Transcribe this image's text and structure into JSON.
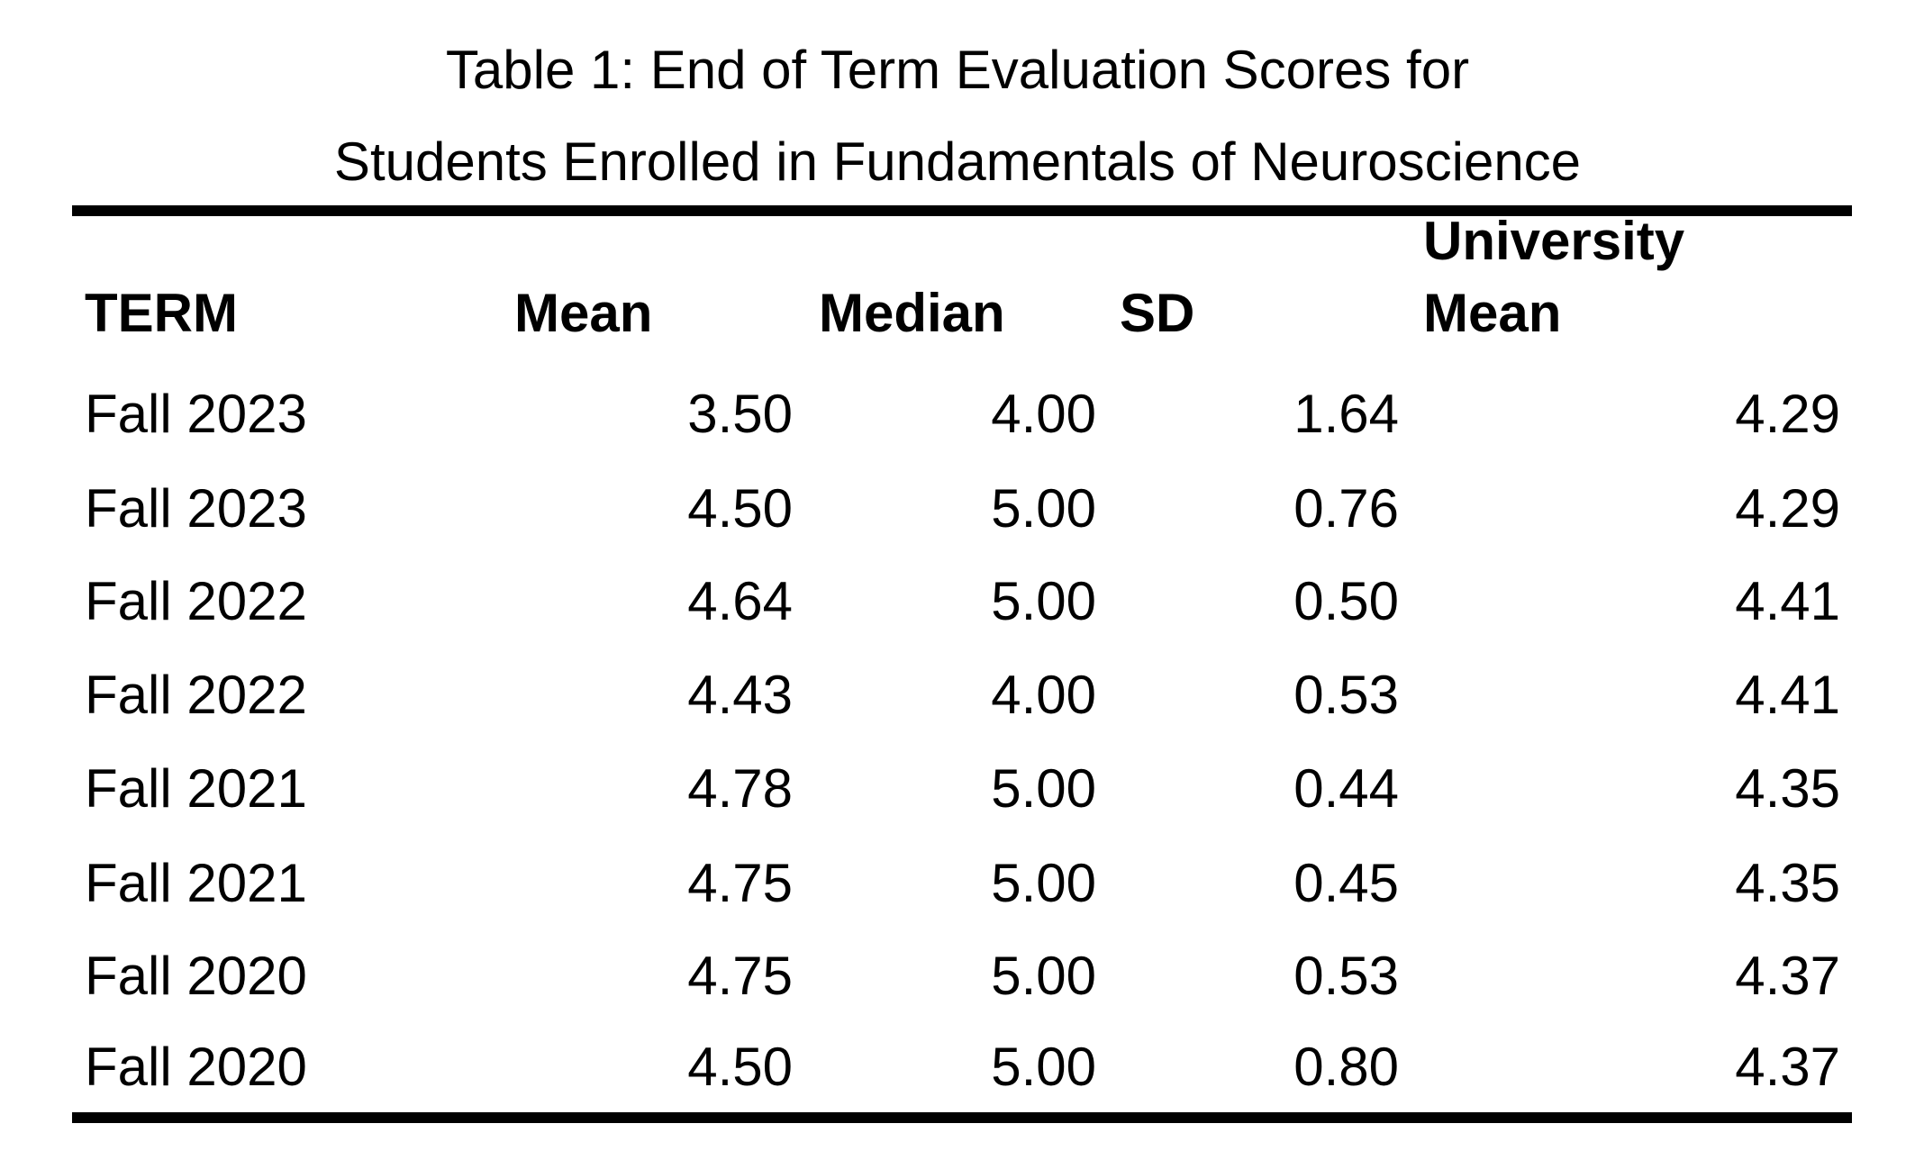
{
  "table": {
    "caption_line1": "Table 1: End of Term Evaluation Scores for",
    "caption_line2": "Students Enrolled in Fundamentals of Neuroscience",
    "headers": {
      "term": "TERM",
      "mean": "Mean",
      "median": "Median",
      "sd": "SD",
      "university_mean_line1": "University",
      "university_mean_line2": "Mean"
    },
    "rows": [
      {
        "term": "Fall 2023",
        "mean": "3.50",
        "median": "4.00",
        "sd": "1.64",
        "university_mean": "4.29"
      },
      {
        "term": "Fall 2023",
        "mean": "4.50",
        "median": "5.00",
        "sd": "0.76",
        "university_mean": "4.29"
      },
      {
        "term": "Fall 2022",
        "mean": "4.64",
        "median": "5.00",
        "sd": "0.50",
        "university_mean": "4.41"
      },
      {
        "term": "Fall 2022",
        "mean": "4.43",
        "median": "4.00",
        "sd": "0.53",
        "university_mean": "4.41"
      },
      {
        "term": "Fall 2021",
        "mean": "4.78",
        "median": "5.00",
        "sd": "0.44",
        "university_mean": "4.35"
      },
      {
        "term": "Fall 2021",
        "mean": "4.75",
        "median": "5.00",
        "sd": "0.45",
        "university_mean": "4.35"
      },
      {
        "term": "Fall 2020",
        "mean": "4.75",
        "median": "5.00",
        "sd": "0.53",
        "university_mean": "4.37"
      },
      {
        "term": "Fall 2020",
        "mean": "4.50",
        "median": "5.00",
        "sd": "0.80",
        "university_mean": "4.37"
      }
    ]
  }
}
